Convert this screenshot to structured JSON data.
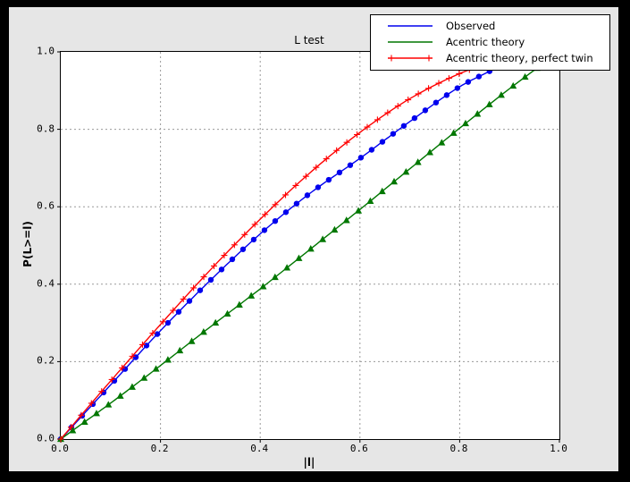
{
  "window": {
    "background": "#000000",
    "figure_background": "#e6e6e6",
    "axes_background": "#ffffff",
    "grid_color": "#9a9a9a"
  },
  "chart_data": {
    "type": "line",
    "title": "L test",
    "xlabel": "|l|",
    "ylabel": "P(L>=l)",
    "xlim": [
      0.0,
      1.0
    ],
    "ylim": [
      0.0,
      1.0
    ],
    "xticks": [
      "0.0",
      "0.2",
      "0.4",
      "0.6",
      "0.8",
      "1.0"
    ],
    "yticks": [
      "0.0",
      "0.2",
      "0.4",
      "0.6",
      "0.8",
      "1.0"
    ],
    "grid": "dashed at 0.2 intervals",
    "legend_position": "upper right",
    "series": [
      {
        "name": "Observed",
        "color": "#0000ee",
        "marker": "circle",
        "legend_marker": "none",
        "n_markers": 41,
        "points": [
          [
            0.0,
            0.0
          ],
          [
            0.1,
            0.14
          ],
          [
            0.2,
            0.28
          ],
          [
            0.3,
            0.41
          ],
          [
            0.4,
            0.53
          ],
          [
            0.5,
            0.635
          ],
          [
            0.6,
            0.725
          ],
          [
            0.7,
            0.82
          ],
          [
            0.8,
            0.91
          ],
          [
            0.86,
            0.95
          ]
        ]
      },
      {
        "name": "Acentric theory",
        "color": "#007700",
        "marker": "triangle-up",
        "legend_marker": "none",
        "n_markers": 41,
        "points": [
          [
            0.0,
            0.0
          ],
          [
            0.1,
            0.093
          ],
          [
            0.2,
            0.19
          ],
          [
            0.3,
            0.29
          ],
          [
            0.4,
            0.388
          ],
          [
            0.5,
            0.49
          ],
          [
            0.6,
            0.593
          ],
          [
            0.7,
            0.698
          ],
          [
            0.8,
            0.803
          ],
          [
            0.9,
            0.905
          ],
          [
            0.955,
            0.958
          ]
        ]
      },
      {
        "name": "Acentric theory, perfect twin",
        "color": "#ff0000",
        "marker": "plus",
        "legend_marker": "plus-ends",
        "n_markers": 42,
        "points": [
          [
            0.0,
            0.0
          ],
          [
            0.1,
            0.15
          ],
          [
            0.2,
            0.296
          ],
          [
            0.3,
            0.437
          ],
          [
            0.4,
            0.568
          ],
          [
            0.5,
            0.688
          ],
          [
            0.6,
            0.792
          ],
          [
            0.7,
            0.879
          ],
          [
            0.8,
            0.944
          ],
          [
            0.84,
            0.963
          ]
        ]
      }
    ]
  }
}
